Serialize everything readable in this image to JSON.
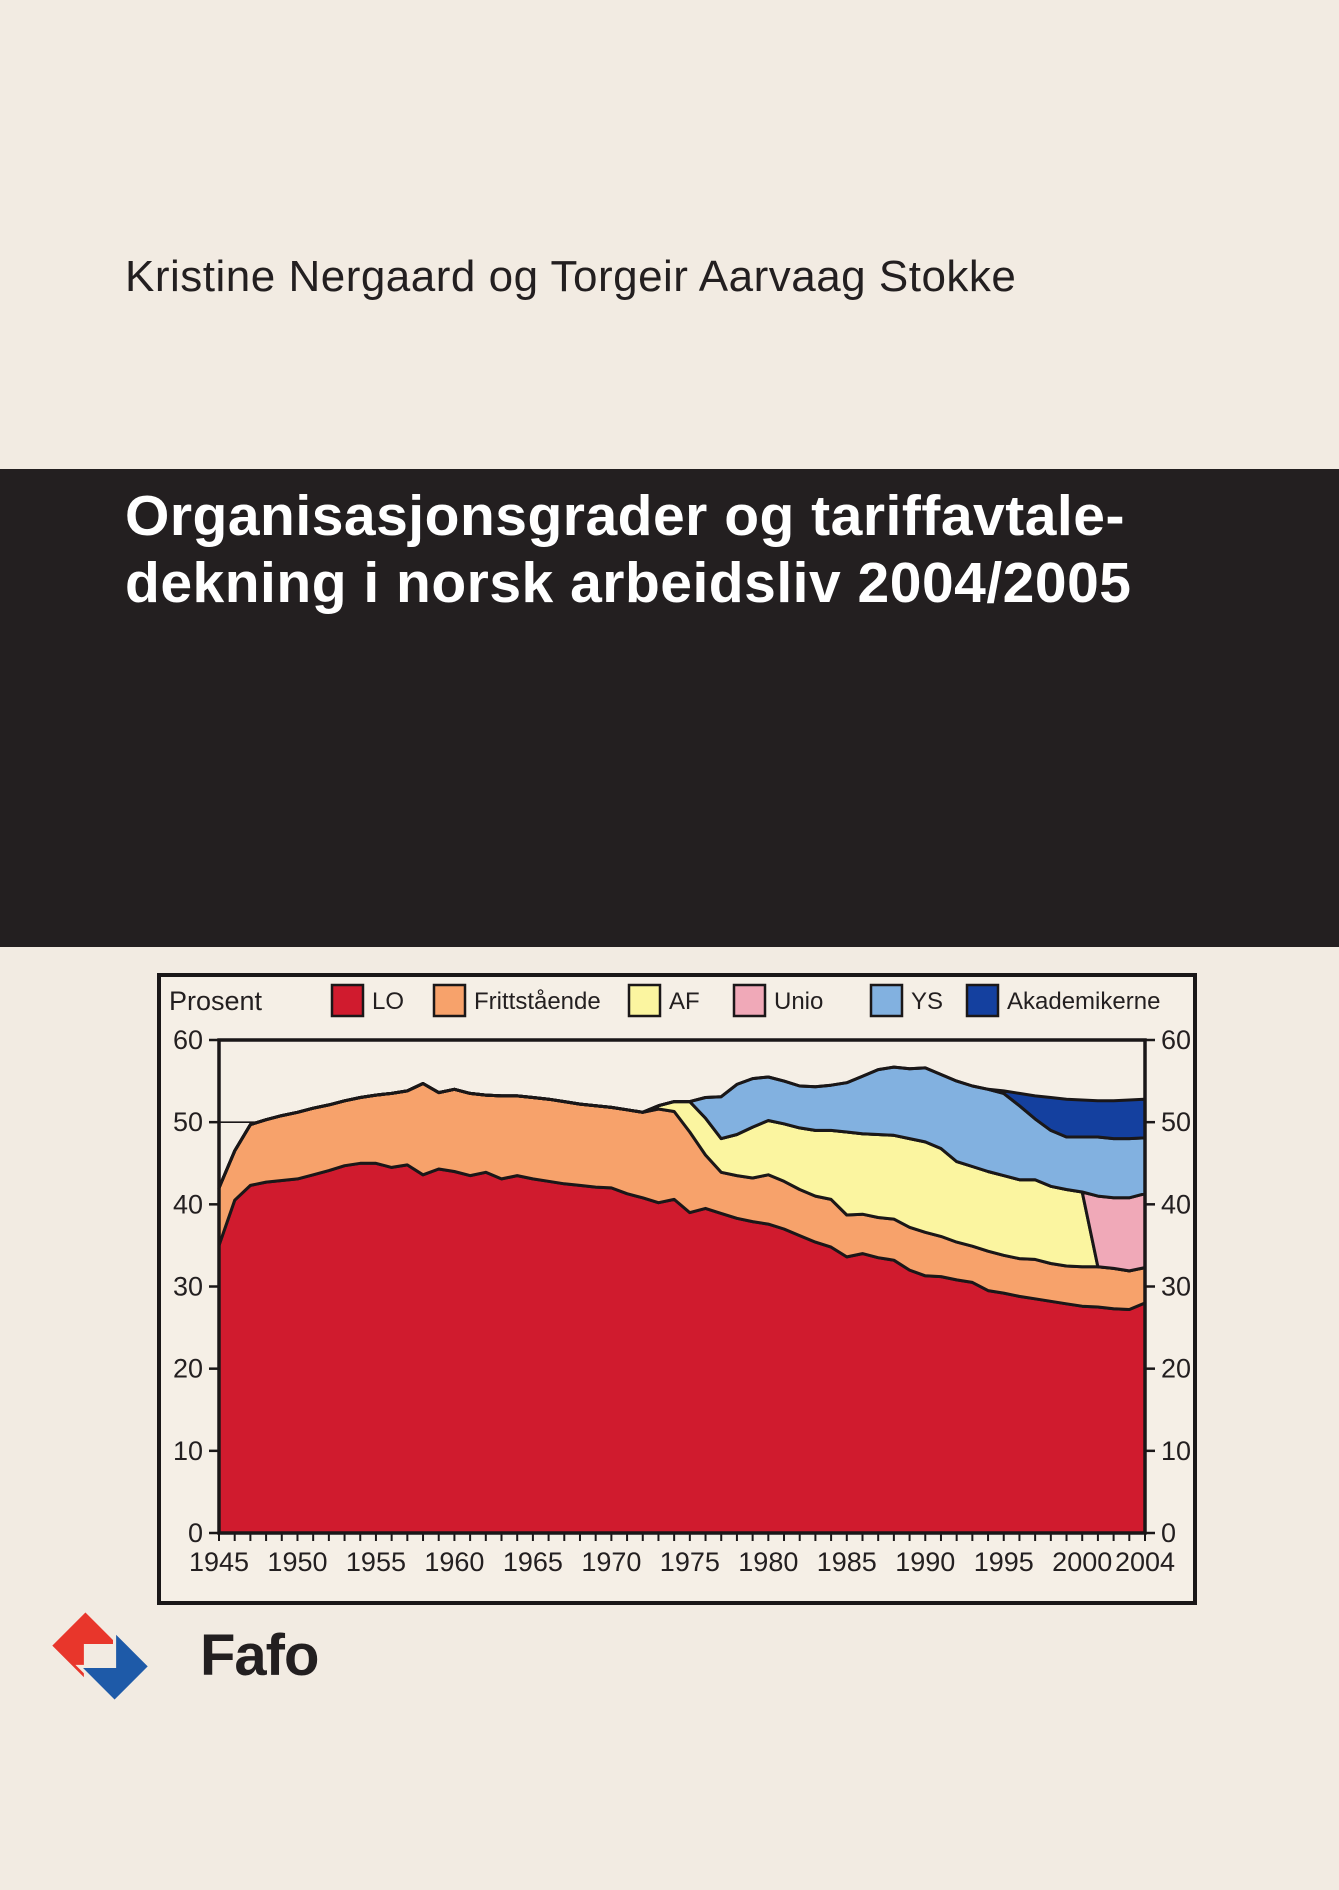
{
  "page": {
    "background": "#f2ebe2",
    "banner_background": "#231f20",
    "figure_background": "#f5efe6"
  },
  "author_line": "Kristine Nergaard og Torgeir Aarvaag Stokke",
  "title_banner": {
    "line1": "Organisasjonsgrader og tariffavtale-",
    "line2": "dekning i norsk arbeidsliv 2004/2005",
    "text_color": "#ffffff"
  },
  "logo": {
    "text": "Fafo",
    "red": "#e8362b",
    "blue": "#1e5aa8"
  },
  "chart_data": {
    "type": "area",
    "stacked": true,
    "unit_label": "Prosent",
    "legend_position": "top",
    "grid": "horizontal-behind-areas",
    "axis_labels_both_sides": true,
    "ylim": [
      0,
      60
    ],
    "y_ticks": [
      0,
      10,
      20,
      30,
      40,
      50,
      60
    ],
    "x_range": [
      1945,
      2004
    ],
    "x_tick_labels": [
      "1945",
      "1950",
      "1955",
      "1960",
      "1965",
      "1970",
      "1975",
      "1980",
      "1985",
      "1990",
      "1995",
      "2000",
      "2004"
    ],
    "x": [
      1945,
      1946,
      1947,
      1948,
      1949,
      1950,
      1951,
      1952,
      1953,
      1954,
      1955,
      1956,
      1957,
      1958,
      1959,
      1960,
      1961,
      1962,
      1963,
      1964,
      1965,
      1966,
      1967,
      1968,
      1969,
      1970,
      1971,
      1972,
      1973,
      1974,
      1975,
      1976,
      1977,
      1978,
      1979,
      1980,
      1981,
      1982,
      1983,
      1984,
      1985,
      1986,
      1987,
      1988,
      1989,
      1990,
      1991,
      1992,
      1993,
      1994,
      1995,
      1996,
      1997,
      1998,
      1999,
      2000,
      2001,
      2002,
      2003,
      2004
    ],
    "series": [
      {
        "name": "LO",
        "color": "#d01b2e",
        "values": [
          35.0,
          40.5,
          42.3,
          42.7,
          42.9,
          43.1,
          43.6,
          44.1,
          44.7,
          45.0,
          45.0,
          44.5,
          44.8,
          43.6,
          44.3,
          44.0,
          43.5,
          43.9,
          43.1,
          43.5,
          43.1,
          42.8,
          42.5,
          42.3,
          42.1,
          42.0,
          41.3,
          40.8,
          40.2,
          40.6,
          39.0,
          39.5,
          38.9,
          38.3,
          37.9,
          37.6,
          37.0,
          36.2,
          35.4,
          34.8,
          33.6,
          34.0,
          33.5,
          33.2,
          32.0,
          31.3,
          31.2,
          30.8,
          30.5,
          29.5,
          29.2,
          28.8,
          28.5,
          28.2,
          27.9,
          27.6,
          27.5,
          27.3,
          27.2,
          28.0
        ]
      },
      {
        "name": "Frittstående",
        "color": "#f7a26b",
        "values": [
          7.0,
          6.0,
          7.4,
          7.6,
          7.9,
          8.1,
          8.1,
          8.0,
          7.9,
          8.0,
          8.3,
          9.0,
          9.0,
          11.1,
          9.3,
          10.0,
          10.0,
          9.4,
          10.1,
          9.7,
          9.9,
          10.0,
          10.0,
          9.9,
          9.9,
          9.8,
          10.2,
          10.4,
          11.4,
          10.7,
          9.8,
          6.5,
          5.0,
          5.2,
          5.3,
          6.0,
          5.8,
          5.6,
          5.6,
          5.8,
          5.1,
          4.8,
          4.9,
          5.0,
          5.2,
          5.3,
          4.9,
          4.6,
          4.4,
          4.8,
          4.6,
          4.6,
          4.8,
          4.6,
          4.6,
          4.8,
          4.9,
          4.9,
          4.7,
          4.3
        ]
      },
      {
        "name": "AF",
        "color": "#fbf5a0",
        "values": [
          0,
          0,
          0,
          0,
          0,
          0,
          0,
          0,
          0,
          0,
          0,
          0,
          0,
          0,
          0,
          0,
          0,
          0,
          0,
          0,
          0,
          0,
          0,
          0,
          0,
          0,
          0,
          0,
          0.4,
          1.2,
          3.7,
          4.5,
          4.1,
          5.0,
          6.2,
          6.6,
          7.0,
          7.5,
          8.0,
          8.4,
          10.1,
          9.8,
          10.1,
          10.2,
          10.8,
          11.0,
          10.7,
          9.8,
          9.7,
          9.7,
          9.7,
          9.6,
          9.7,
          9.4,
          9.3,
          9.1,
          0,
          0,
          0,
          0
        ]
      },
      {
        "name": "Unio",
        "color": "#f0a9b8",
        "values": [
          0,
          0,
          0,
          0,
          0,
          0,
          0,
          0,
          0,
          0,
          0,
          0,
          0,
          0,
          0,
          0,
          0,
          0,
          0,
          0,
          0,
          0,
          0,
          0,
          0,
          0,
          0,
          0,
          0,
          0,
          0,
          0,
          0,
          0,
          0,
          0,
          0,
          0,
          0,
          0,
          0,
          0,
          0,
          0,
          0,
          0,
          0,
          0,
          0,
          0,
          0,
          0,
          0,
          0,
          0,
          0,
          8.6,
          8.6,
          8.9,
          9.0
        ]
      },
      {
        "name": "YS",
        "color": "#82b1e0",
        "values": [
          0,
          0,
          0,
          0,
          0,
          0,
          0,
          0,
          0,
          0,
          0,
          0,
          0,
          0,
          0,
          0,
          0,
          0,
          0,
          0,
          0,
          0,
          0,
          0,
          0,
          0,
          0,
          0,
          0,
          0,
          0,
          2.5,
          5.1,
          6.1,
          5.9,
          5.3,
          5.2,
          5.1,
          5.3,
          5.5,
          6.0,
          7.0,
          7.9,
          8.3,
          8.5,
          9.0,
          9.0,
          9.8,
          9.8,
          10.0,
          10.0,
          9.0,
          7.4,
          6.8,
          6.4,
          6.7,
          7.2,
          7.2,
          7.2,
          6.8
        ]
      },
      {
        "name": "Akademikerne",
        "color": "#14409f",
        "values": [
          0,
          0,
          0,
          0,
          0,
          0,
          0,
          0,
          0,
          0,
          0,
          0,
          0,
          0,
          0,
          0,
          0,
          0,
          0,
          0,
          0,
          0,
          0,
          0,
          0,
          0,
          0,
          0,
          0,
          0,
          0,
          0,
          0,
          0,
          0,
          0,
          0,
          0,
          0,
          0,
          0,
          0,
          0,
          0,
          0,
          0,
          0,
          0,
          0,
          0,
          0.3,
          1.5,
          2.8,
          4.0,
          4.6,
          4.5,
          4.4,
          4.6,
          4.7,
          4.7
        ]
      }
    ]
  }
}
